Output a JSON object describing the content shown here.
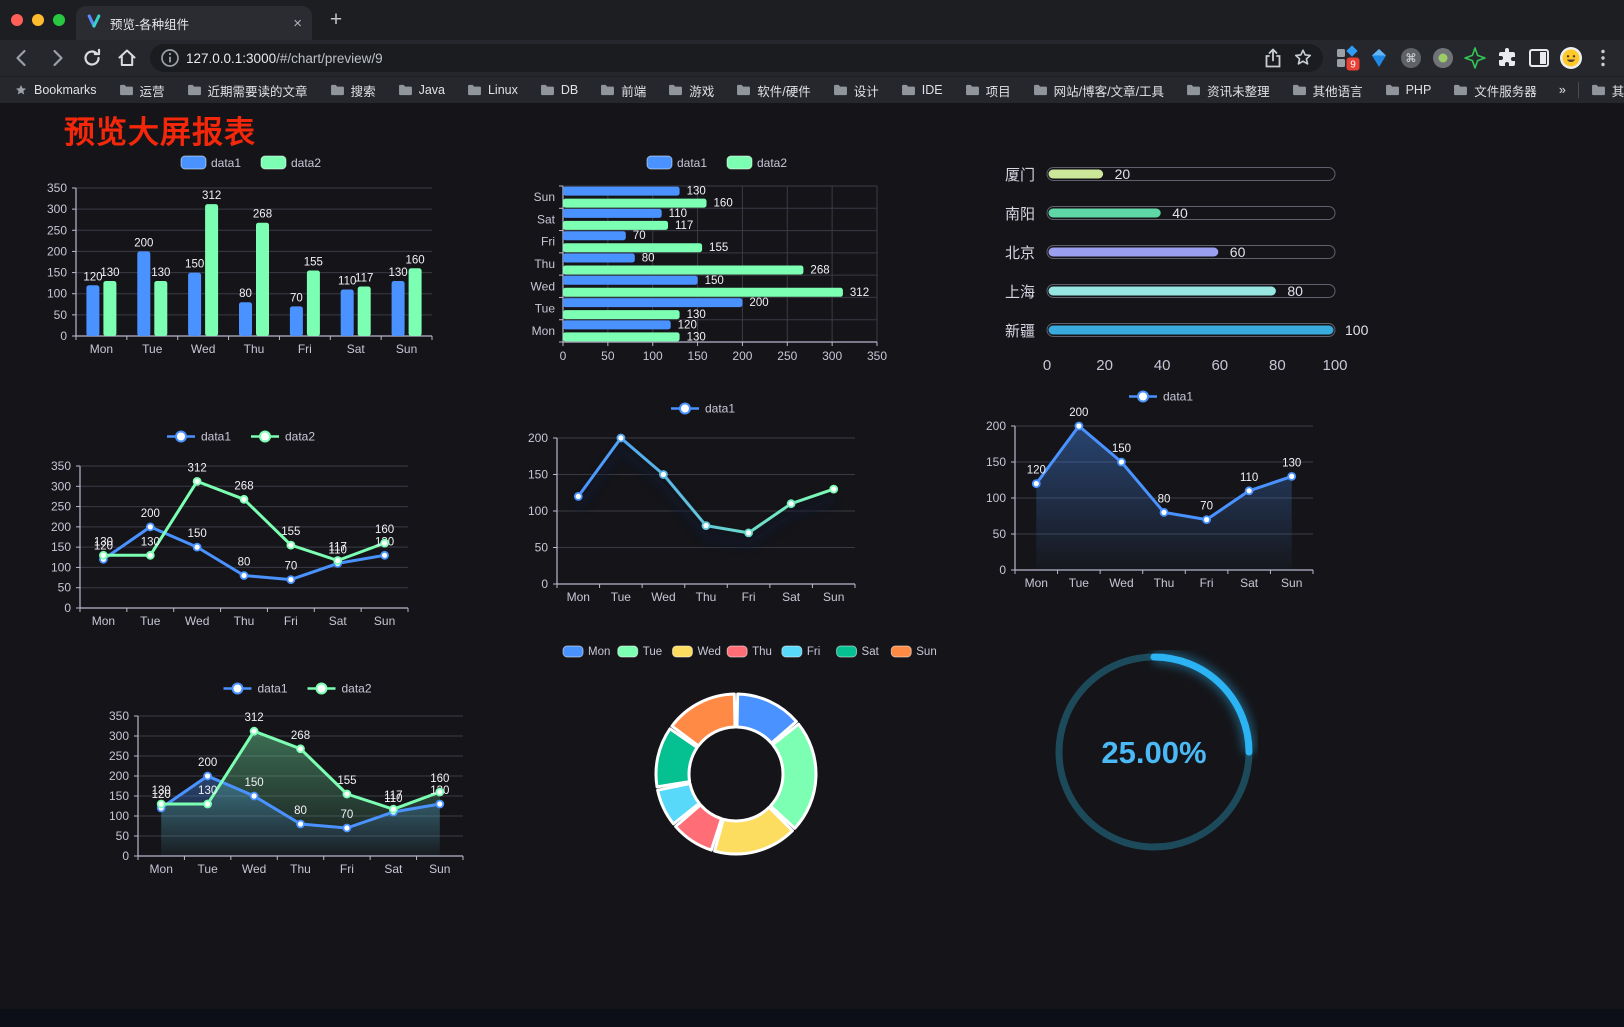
{
  "browser": {
    "traffic_lights": [
      "#ff5f57",
      "#febc2e",
      "#28c840"
    ],
    "tab": {
      "title": "预览-各种组件",
      "close": "×",
      "new_tab": "+"
    },
    "url": {
      "host": "127.0.0.1:3000",
      "path": "/#/chart/preview/9"
    },
    "extension_badge": "9",
    "bookmarks_label": "Bookmarks",
    "bookmarks": [
      "运营",
      "近期需要读的文章",
      "搜索",
      "Java",
      "Linux",
      "DB",
      "前端",
      "游戏",
      "软件/硬件",
      "设计",
      "IDE",
      "项目",
      "网站/博客/文章/工具",
      "资讯未整理",
      "其他语言",
      "PHP",
      "文件服务器"
    ],
    "bookmarks_overflow": "»",
    "other_bookmarks": "其他书签"
  },
  "page": {
    "title": "预览大屏报表",
    "title_color": "#f5270b"
  },
  "chart_data": [
    {
      "type": "bar",
      "categories": [
        "Mon",
        "Tue",
        "Wed",
        "Thu",
        "Fri",
        "Sat",
        "Sun"
      ],
      "series": [
        {
          "name": "data1",
          "color": "#4992ff",
          "values": [
            120,
            200,
            150,
            80,
            70,
            110,
            130
          ]
        },
        {
          "name": "data2",
          "color": "#7cffb2",
          "values": [
            130,
            130,
            312,
            268,
            155,
            117,
            160
          ]
        }
      ],
      "ylim": [
        0,
        350
      ],
      "ystep": 50,
      "show_labels": true,
      "legend_position": "top",
      "grid": true
    },
    {
      "type": "hbar",
      "categories": [
        "Mon",
        "Tue",
        "Wed",
        "Thu",
        "Fri",
        "Sat",
        "Sun"
      ],
      "series": [
        {
          "name": "data1",
          "color": "#4992ff",
          "values": [
            120,
            200,
            150,
            80,
            70,
            110,
            130
          ]
        },
        {
          "name": "data2",
          "color": "#7cffb2",
          "values": [
            130,
            130,
            312,
            268,
            155,
            117,
            160
          ]
        }
      ],
      "xlim": [
        0,
        350
      ],
      "xstep": 50,
      "show_labels": true,
      "legend_position": "top",
      "grid": true
    },
    {
      "type": "progress",
      "items": [
        {
          "label": "厦门",
          "value": 20,
          "color": "#cde79a"
        },
        {
          "label": "南阳",
          "value": 40,
          "color": "#5fd6a6"
        },
        {
          "label": "北京",
          "value": 60,
          "color": "#9a9ff0"
        },
        {
          "label": "上海",
          "value": 80,
          "color": "#97e6e2"
        },
        {
          "label": "新疆",
          "value": 100,
          "color": "#39abdf"
        }
      ],
      "xlim": [
        0,
        100
      ],
      "xticks": [
        0,
        20,
        40,
        60,
        80,
        100
      ]
    },
    {
      "type": "line",
      "categories": [
        "Mon",
        "Tue",
        "Wed",
        "Thu",
        "Fri",
        "Sat",
        "Sun"
      ],
      "series": [
        {
          "name": "data1",
          "color": "#4992ff",
          "values": [
            120,
            200,
            150,
            80,
            70,
            110,
            130
          ]
        },
        {
          "name": "data2",
          "color": "#7cffb2",
          "values": [
            130,
            130,
            312,
            268,
            155,
            117,
            160
          ]
        }
      ],
      "ylim": [
        0,
        350
      ],
      "ystep": 50,
      "show_labels": true,
      "legend_position": "top",
      "grid": true
    },
    {
      "type": "line",
      "categories": [
        "Mon",
        "Tue",
        "Wed",
        "Thu",
        "Fri",
        "Sat",
        "Sun"
      ],
      "series": [
        {
          "name": "data1",
          "gradient": [
            "#4992ff",
            "#7cffb2"
          ],
          "values": [
            120,
            200,
            150,
            80,
            70,
            110,
            130
          ]
        }
      ],
      "ylim": [
        0,
        200
      ],
      "ystep": 50,
      "show_labels": false,
      "shadow": true,
      "legend_position": "top",
      "grid": true
    },
    {
      "type": "line",
      "categories": [
        "Mon",
        "Tue",
        "Wed",
        "Thu",
        "Fri",
        "Sat",
        "Sun"
      ],
      "series": [
        {
          "name": "data1",
          "color": "#4992ff",
          "area": true,
          "values": [
            120,
            200,
            150,
            80,
            70,
            110,
            130
          ]
        }
      ],
      "ylim": [
        0,
        200
      ],
      "ystep": 50,
      "show_labels": true,
      "legend_position": "top",
      "grid": true
    },
    {
      "type": "line",
      "categories": [
        "Mon",
        "Tue",
        "Wed",
        "Thu",
        "Fri",
        "Sat",
        "Sun"
      ],
      "series": [
        {
          "name": "data1",
          "color": "#4992ff",
          "area": true,
          "values": [
            120,
            200,
            150,
            80,
            70,
            110,
            130
          ]
        },
        {
          "name": "data2",
          "color": "#7cffb2",
          "area": true,
          "values": [
            130,
            130,
            312,
            268,
            155,
            117,
            160
          ]
        }
      ],
      "ylim": [
        0,
        350
      ],
      "ystep": 50,
      "show_labels": true,
      "legend_position": "top",
      "grid": true
    },
    {
      "type": "pie",
      "items": [
        {
          "label": "Mon",
          "value": 120,
          "color": "#4992ff"
        },
        {
          "label": "Tue",
          "value": 200,
          "color": "#7cffb2"
        },
        {
          "label": "Wed",
          "value": 150,
          "color": "#fddd60"
        },
        {
          "label": "Thu",
          "value": 80,
          "color": "#ff6e76"
        },
        {
          "label": "Fri",
          "value": 70,
          "color": "#58d9f9"
        },
        {
          "label": "Sat",
          "value": 110,
          "color": "#05c091"
        },
        {
          "label": "Sun",
          "value": 130,
          "color": "#ff8a45"
        }
      ],
      "donut": true,
      "legend_position": "top"
    },
    {
      "type": "gauge",
      "value": 25,
      "label": "25.00%",
      "color": "#2bb3f3",
      "track_color": "#1d4a5a",
      "text_color": "#4ab9f6"
    }
  ]
}
